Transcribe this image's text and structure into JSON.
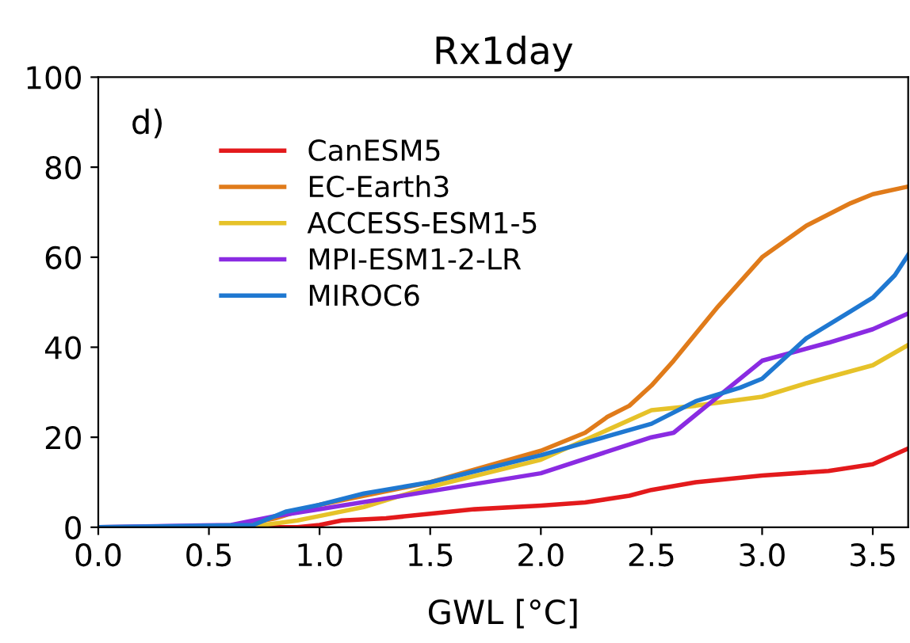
{
  "chart_data": {
    "type": "line",
    "title": "Rx1day",
    "xlabel": "GWL [°C]",
    "annotations": [
      "d)"
    ],
    "xlim": [
      0,
      3.66
    ],
    "xticks": [
      {
        "value": 0,
        "label": "0.0"
      },
      0.5,
      {
        "value": 1,
        "label": "1.0"
      },
      1.5,
      {
        "value": 2,
        "label": "2.0"
      },
      2.5,
      {
        "value": 3,
        "label": "3.0"
      },
      3.5
    ],
    "ylim": [
      0,
      100
    ],
    "yticks": [
      0,
      20,
      40,
      60,
      80,
      100
    ],
    "grid": false,
    "legend": "top left",
    "line_style": "solid",
    "marker": "none",
    "series": [
      {
        "name": "CanESM5",
        "color": "#e31a1c",
        "x": [
          0,
          0.9,
          1.0,
          1.1,
          1.3,
          1.5,
          1.7,
          2.0,
          2.2,
          2.4,
          2.5,
          2.7,
          3.0,
          3.3,
          3.5,
          3.66
        ],
        "values": [
          0,
          0,
          0.5,
          1.5,
          2,
          3,
          4,
          4.8,
          5.5,
          7,
          8.3,
          10,
          11.5,
          12.5,
          14,
          17.5
        ]
      },
      {
        "name": "EC-Earth3",
        "color": "#e07b1a",
        "x": [
          0,
          0.6,
          0.8,
          1.0,
          1.5,
          2.0,
          2.2,
          2.3,
          2.4,
          2.5,
          2.6,
          2.8,
          3.0,
          3.2,
          3.4,
          3.5,
          3.66
        ],
        "values": [
          0,
          0,
          2,
          5,
          10,
          17,
          21,
          24.5,
          27,
          31.5,
          37,
          49,
          60,
          67,
          72,
          74,
          75.7
        ]
      },
      {
        "name": "ACCESS-ESM1-5",
        "color": "#e6c229",
        "x": [
          0,
          0.7,
          0.9,
          1.0,
          1.2,
          1.5,
          2.0,
          2.5,
          2.7,
          3.0,
          3.2,
          3.5,
          3.66
        ],
        "values": [
          0,
          0.2,
          1.5,
          2.5,
          4.5,
          9,
          15,
          26,
          27,
          29,
          32,
          36,
          40.5
        ]
      },
      {
        "name": "MPI-ESM1-2-LR",
        "color": "#8a2be2",
        "x": [
          0,
          0.6,
          0.8,
          1.0,
          1.5,
          2.0,
          2.5,
          2.6,
          2.7,
          3.0,
          3.3,
          3.5,
          3.66
        ],
        "values": [
          0,
          0.5,
          2.5,
          4,
          8,
          12,
          20,
          21,
          25,
          37,
          41,
          44,
          47.5
        ]
      },
      {
        "name": "MIROC6",
        "color": "#1f78d1",
        "x": [
          0,
          0.7,
          0.85,
          1.0,
          1.2,
          1.5,
          2.0,
          2.5,
          2.7,
          2.9,
          3.0,
          3.2,
          3.4,
          3.5,
          3.6,
          3.66
        ],
        "values": [
          0,
          0.5,
          3.5,
          5,
          7.5,
          10,
          16,
          23,
          28,
          31,
          33,
          42,
          48,
          51,
          56,
          60.5
        ]
      }
    ]
  }
}
